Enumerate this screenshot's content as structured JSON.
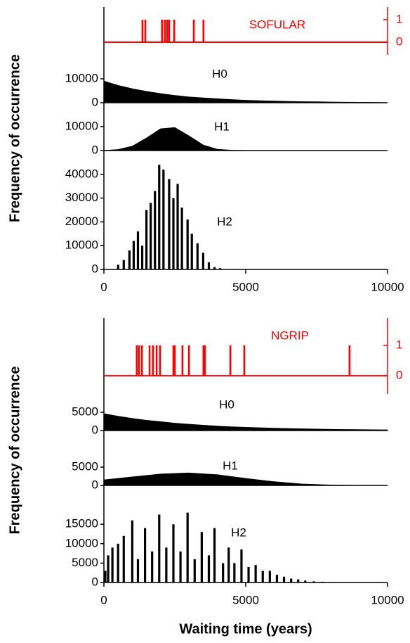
{
  "chart_data": [
    {
      "type": "events",
      "title": "SOFULAR",
      "color": "#ff0000",
      "xlim": [
        0,
        10000
      ],
      "x": [
        1360,
        1460,
        2050,
        2150,
        2230,
        2300,
        2480,
        3170,
        3510
      ],
      "values": [
        1,
        1,
        1,
        1,
        1,
        1,
        1,
        1,
        1
      ],
      "y2lim": [
        -0.56,
        1.56
      ],
      "y2ticks": [
        0,
        1
      ]
    },
    {
      "type": "area",
      "label": "H0",
      "color": "#000000",
      "xlim": [
        0,
        10000
      ],
      "x": [
        0,
        500,
        1000,
        1500,
        2000,
        2500,
        3000,
        3500,
        4000,
        4500,
        5000,
        5500,
        6000,
        6500,
        7000,
        7500,
        8000,
        8500,
        9000,
        9500,
        10000
      ],
      "values": [
        9000,
        7200,
        5800,
        4700,
        3800,
        3000,
        2400,
        2000,
        1600,
        1300,
        1000,
        800,
        650,
        500,
        400,
        350,
        250,
        200,
        150,
        100,
        0
      ],
      "ylim": [
        0,
        20000
      ],
      "yticks": [
        0,
        10000
      ]
    },
    {
      "type": "area",
      "label": "H1",
      "color": "#000000",
      "xlim": [
        0,
        10000
      ],
      "ylabel": "Frequency of occurrence",
      "x": [
        0,
        500,
        1000,
        1500,
        2000,
        2500,
        3000,
        3500,
        4000,
        4500,
        5000,
        5500
      ],
      "values": [
        0,
        400,
        1800,
        5200,
        9100,
        9600,
        6100,
        2300,
        500,
        100,
        0,
        0
      ],
      "ylim": [
        0,
        20000
      ],
      "yticks": [
        0,
        10000
      ]
    },
    {
      "type": "bar",
      "label": "H2",
      "color": "#000000",
      "xlim": [
        0,
        10000
      ],
      "xticks": [
        0,
        5000,
        10000
      ],
      "x": [
        500,
        700,
        900,
        1050,
        1200,
        1350,
        1500,
        1650,
        1800,
        1950,
        2100,
        2300,
        2450,
        2600,
        2750,
        2950,
        3100,
        3300,
        3500,
        3700,
        3900,
        4100
      ],
      "values": [
        2000,
        4000,
        8000,
        12000,
        16000,
        10000,
        25000,
        28000,
        33000,
        44000,
        42000,
        38000,
        30000,
        36000,
        26000,
        21000,
        15000,
        11000,
        7000,
        3000,
        1000,
        500
      ],
      "ylim": [
        0,
        50000
      ],
      "yticks": [
        0,
        10000,
        20000,
        30000,
        40000
      ]
    },
    {
      "type": "events",
      "title": "NGRIP",
      "color": "#ff0000",
      "xlim": [
        0,
        10000
      ],
      "x": [
        1160,
        1240,
        1340,
        1610,
        1730,
        1860,
        1980,
        2450,
        2500,
        2770,
        3000,
        3510,
        3560,
        4460,
        4950,
        8660
      ],
      "values": [
        1,
        1,
        1,
        1,
        1,
        1,
        1,
        1,
        1,
        1,
        1,
        1,
        1,
        1,
        1,
        1
      ],
      "y2lim": [
        -0.6,
        1.9
      ],
      "y2ticks": [
        0,
        1
      ]
    },
    {
      "type": "area",
      "label": "H0",
      "color": "#000000",
      "xlim": [
        0,
        10000
      ],
      "x": [
        0,
        500,
        1000,
        1500,
        2000,
        2500,
        3000,
        3500,
        4000,
        4500,
        5000,
        5500,
        6000,
        6500,
        7000,
        7500,
        8000,
        8500,
        9000,
        9500,
        10000
      ],
      "values": [
        4600,
        3900,
        3300,
        2800,
        2400,
        2000,
        1700,
        1450,
        1200,
        1000,
        870,
        740,
        620,
        530,
        450,
        380,
        320,
        270,
        230,
        200,
        170
      ],
      "ylim": [
        0,
        10000
      ],
      "yticks": [
        0,
        5000
      ]
    },
    {
      "type": "area",
      "label": "H1",
      "color": "#000000",
      "xlim": [
        0,
        10000
      ],
      "ylabel": "Frequency of occurrence",
      "x": [
        0,
        1000,
        2000,
        3000,
        4000,
        5000,
        6000,
        7000,
        8000,
        9000,
        10000
      ],
      "values": [
        1500,
        2300,
        3100,
        3400,
        2900,
        1900,
        1000,
        350,
        100,
        0,
        0
      ],
      "ylim": [
        0,
        15000
      ],
      "yticks": [
        0,
        5000
      ]
    },
    {
      "type": "bar",
      "label": "H2",
      "color": "#000000",
      "xlim": [
        0,
        10000
      ],
      "xticks": [
        0,
        5000,
        10000
      ],
      "xlabel": "Waiting time (years)",
      "x": [
        50,
        150,
        300,
        500,
        700,
        1000,
        1200,
        1450,
        1700,
        1950,
        2200,
        2450,
        2700,
        2950,
        3200,
        3450,
        3700,
        3900,
        4200,
        4400,
        4600,
        4850,
        5100,
        5350,
        5600,
        5850,
        6100,
        6350,
        6600,
        6850,
        7100,
        7400,
        7700,
        8000
      ],
      "values": [
        3000,
        7000,
        9000,
        10000,
        12000,
        16000,
        6000,
        14000,
        8000,
        17500,
        9000,
        15000,
        8000,
        18000,
        6000,
        13000,
        7000,
        14000,
        5000,
        9000,
        5000,
        8500,
        4000,
        4500,
        3000,
        3000,
        2000,
        1500,
        1000,
        800,
        500,
        300,
        200,
        100
      ],
      "ylim": [
        0,
        25000
      ],
      "yticks": [
        0,
        5000,
        10000,
        15000
      ]
    }
  ]
}
